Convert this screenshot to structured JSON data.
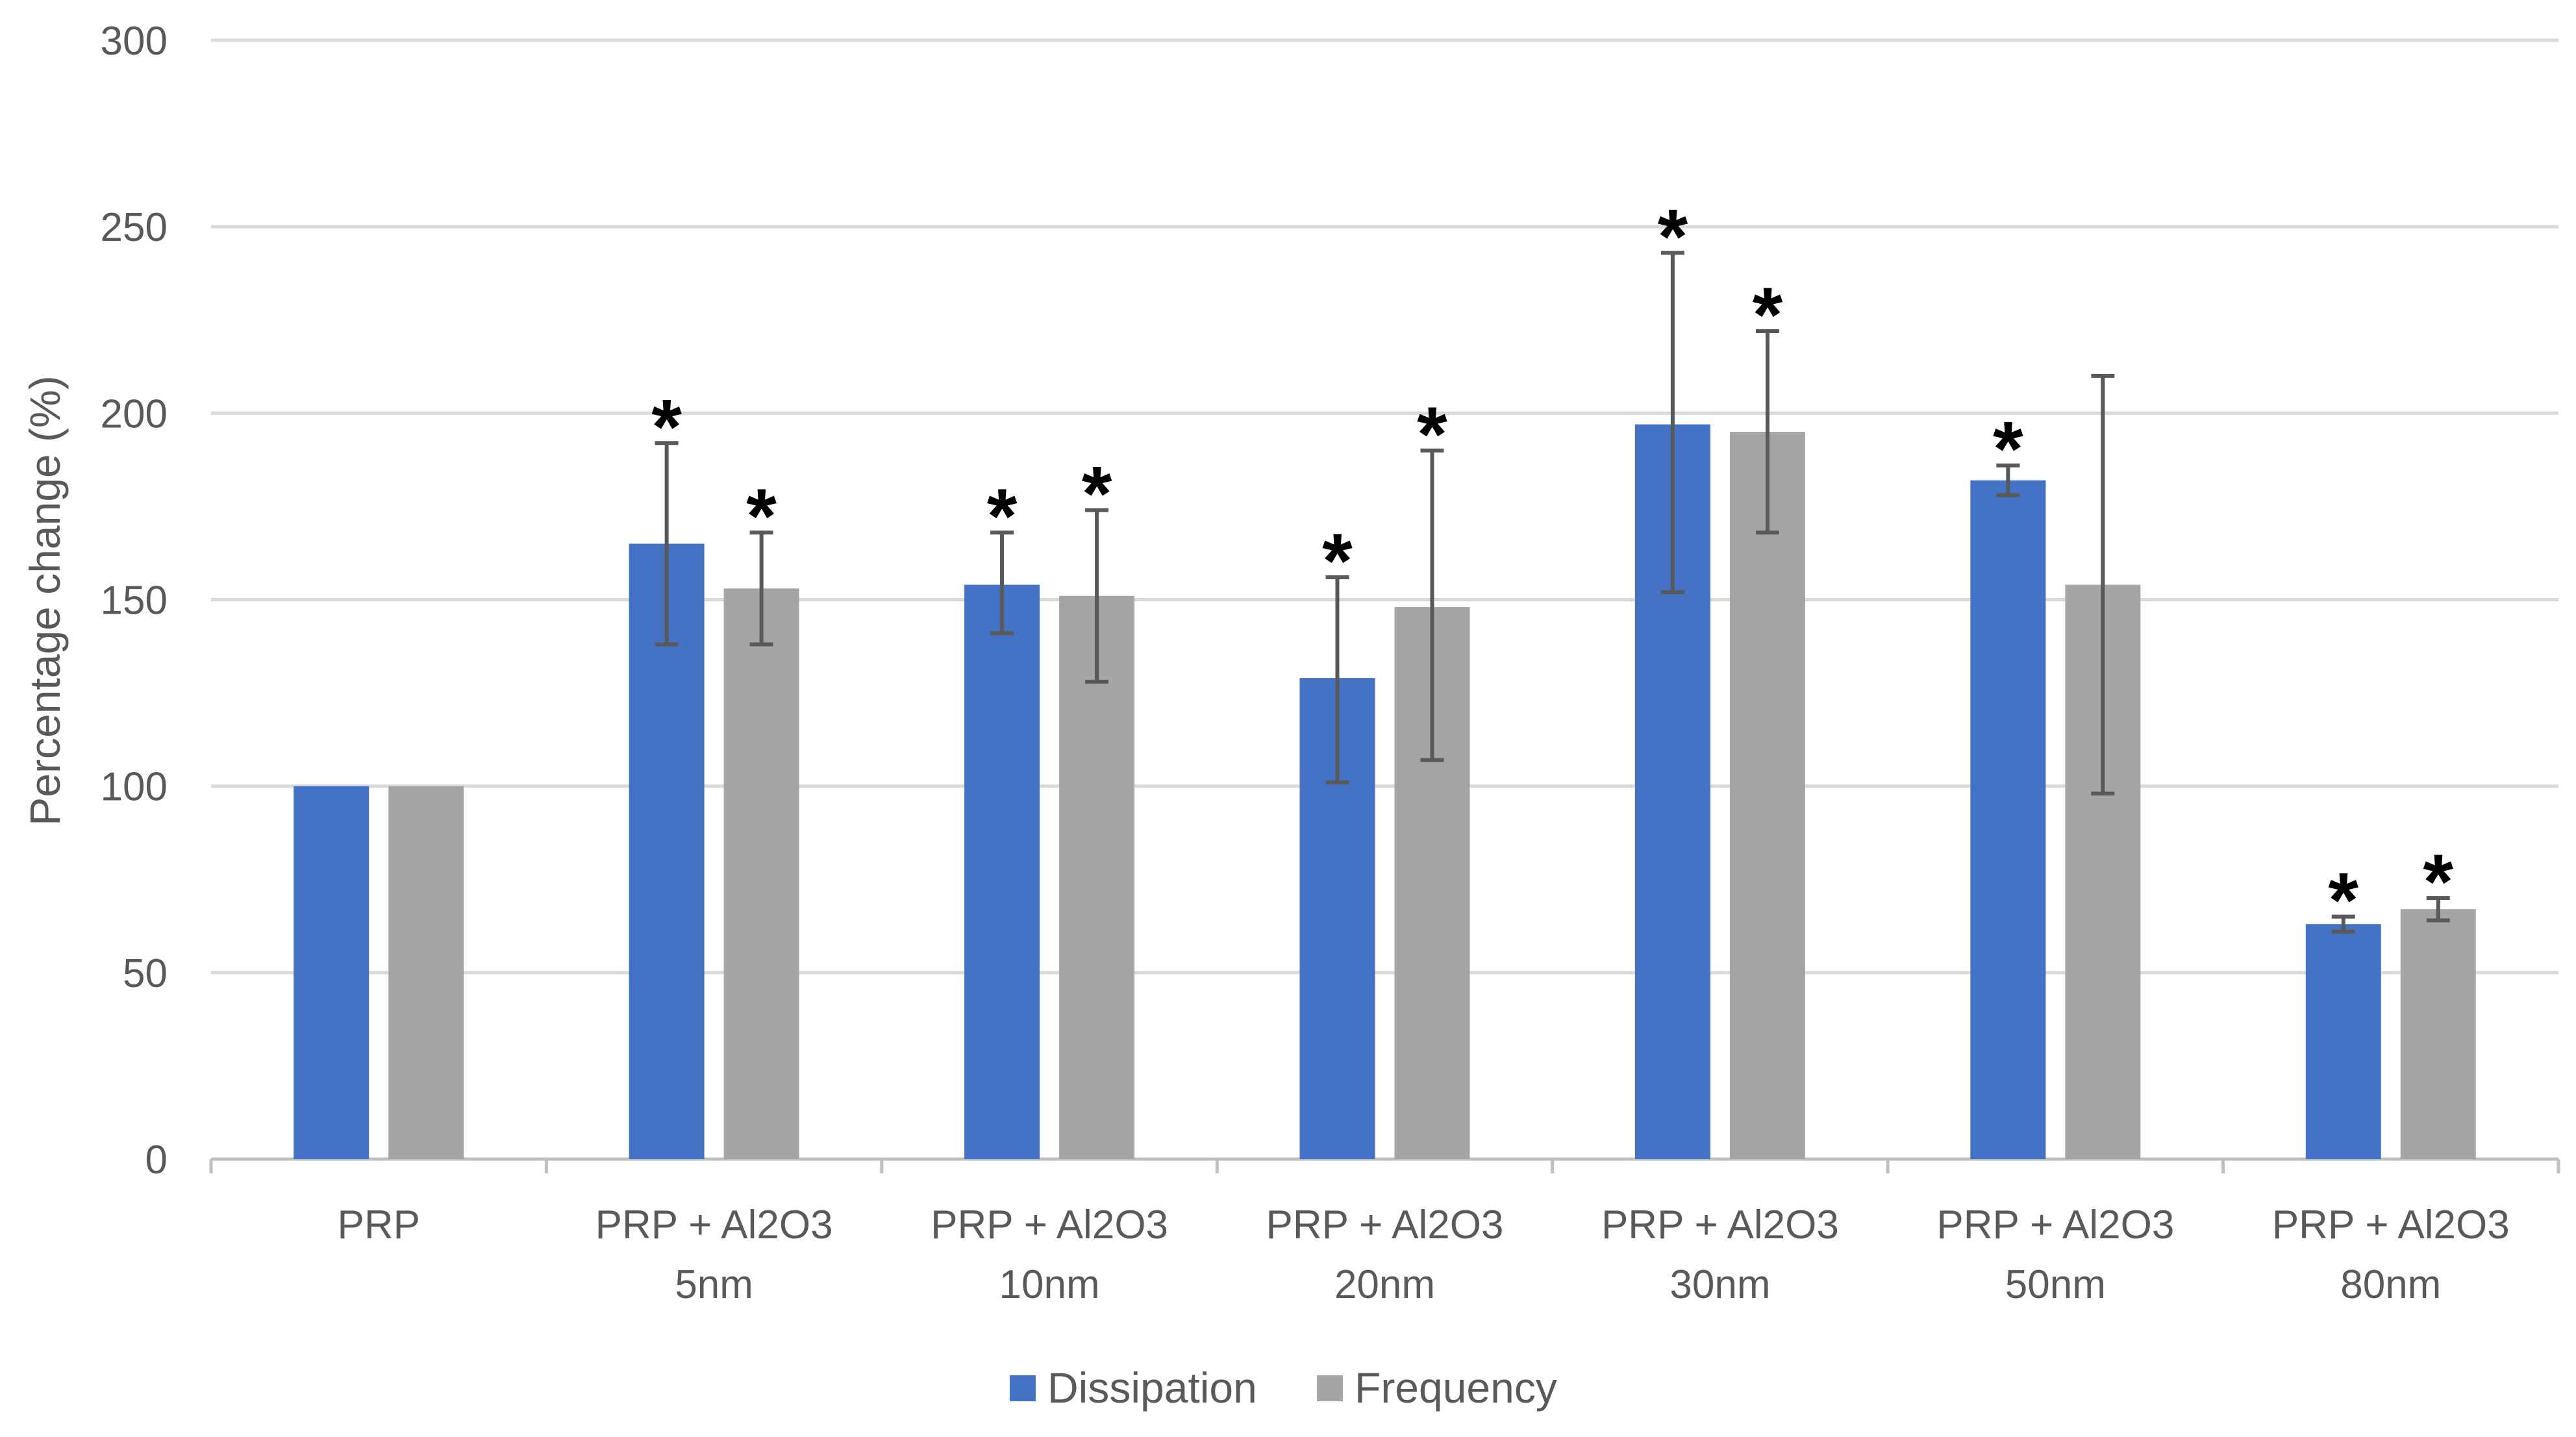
{
  "chart_data": {
    "type": "bar",
    "title": "",
    "xlabel": "",
    "ylabel": "Percentage change (%)",
    "ylim": [
      0,
      300
    ],
    "yticks": [
      0,
      50,
      100,
      150,
      200,
      250,
      300
    ],
    "grid": true,
    "legend_position": "bottom-center",
    "categories": [
      [
        "PRP"
      ],
      [
        "PRP + Al2O3",
        "5nm"
      ],
      [
        "PRP + Al2O3",
        "10nm"
      ],
      [
        "PRP + Al2O3",
        "20nm"
      ],
      [
        "PRP + Al2O3",
        "30nm"
      ],
      [
        "PRP + Al2O3",
        "50nm"
      ],
      [
        "PRP + Al2O3",
        "80nm"
      ]
    ],
    "series": [
      {
        "name": "Dissipation",
        "color": "#4472c4",
        "values": [
          100,
          165,
          154,
          129,
          197,
          182,
          63
        ],
        "error_low": [
          null,
          138,
          141,
          101,
          152,
          178,
          61
        ],
        "error_high": [
          null,
          192,
          168,
          156,
          243,
          186,
          65
        ],
        "significance": [
          "",
          "*",
          "*",
          "*",
          "*",
          "*",
          "*"
        ]
      },
      {
        "name": "Frequency",
        "color": "#a5a5a5",
        "values": [
          100,
          153,
          151,
          148,
          195,
          154,
          67
        ],
        "error_low": [
          null,
          138,
          128,
          107,
          168,
          98,
          64
        ],
        "error_high": [
          null,
          168,
          174,
          190,
          222,
          210,
          70
        ],
        "significance": [
          "",
          "*",
          "*",
          "*",
          "*",
          "",
          "*"
        ]
      }
    ]
  }
}
